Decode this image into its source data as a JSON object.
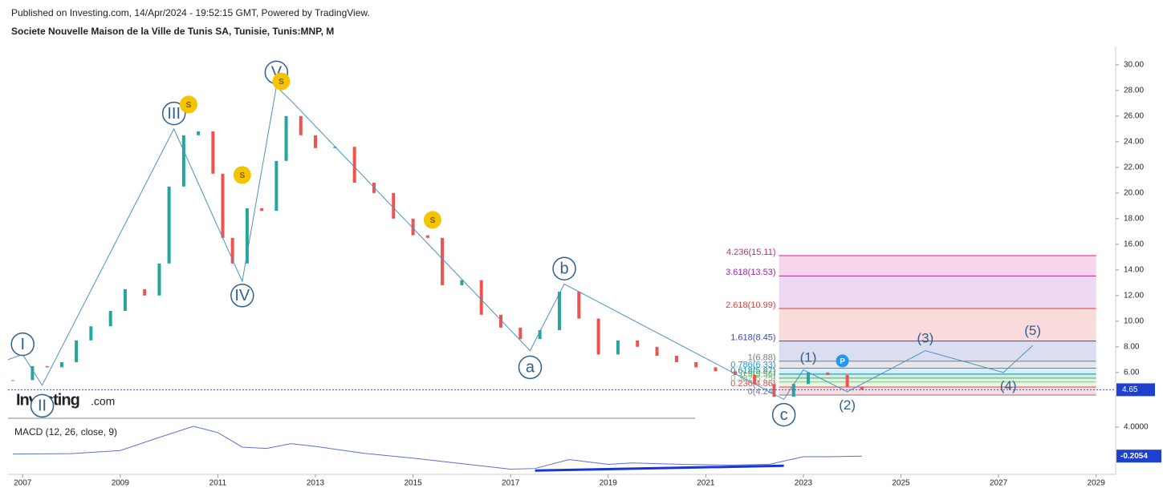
{
  "header": {
    "published": "Published on Investing.com, 14/Apr/2024 - 19:52:15 GMT, Powered by TradingView.",
    "symbol": "Societe Nouvelle Maison de la Ville de Tunis SA, Tunisie, Tunis:MNP, M",
    "logo": "Investing",
    "logo_suffix": ".com"
  },
  "chart_data": [
    {
      "type": "line",
      "name": "price",
      "x": [
        2006.8,
        2007.2,
        2007.5,
        2007.8,
        2008.1,
        2008.4,
        2008.8,
        2009.1,
        2009.5,
        2009.8,
        2010.0,
        2010.3,
        2010.6,
        2010.9,
        2011.1,
        2011.3,
        2011.6,
        2011.9,
        2012.2,
        2012.4,
        2012.7,
        2013.0,
        2013.4,
        2013.8,
        2014.2,
        2014.6,
        2015.0,
        2015.3,
        2015.6,
        2016.0,
        2016.4,
        2016.8,
        2017.2,
        2017.6,
        2018.0,
        2018.4,
        2018.8,
        2019.2,
        2019.6,
        2020.0,
        2020.4,
        2020.8,
        2021.2,
        2021.6,
        2022.0,
        2022.4,
        2022.8,
        2023.1,
        2023.5,
        2023.9,
        2024.2
      ],
      "values": [
        5.4,
        6.5,
        6.4,
        6.8,
        8.5,
        9.6,
        10.8,
        12.5,
        12.0,
        14.5,
        20.5,
        24.5,
        24.8,
        21.5,
        16.5,
        14.5,
        18.8,
        18.6,
        22.5,
        26.0,
        24.5,
        23.5,
        23.6,
        20.8,
        20.0,
        18.0,
        16.7,
        16.5,
        12.8,
        13.2,
        10.5,
        9.5,
        8.6,
        9.3,
        12.3,
        10.2,
        7.4,
        8.5,
        8.0,
        7.3,
        6.8,
        6.4,
        6.1,
        5.8,
        5.1,
        4.1,
        5.1,
        6.0,
        5.8,
        4.9,
        4.65
      ],
      "color": "#26a69a",
      "last_label": "4.65",
      "xlim": [
        2006.7,
        2029.4
      ],
      "xticks": [
        2007,
        2009,
        2011,
        2013,
        2015,
        2017,
        2019,
        2021,
        2023,
        2025,
        2027,
        2029
      ],
      "ylim": [
        2.3,
        31.3
      ],
      "yticks": [
        {
          "value": 6,
          "label": "6.00"
        },
        {
          "value": 8,
          "label": "8.00"
        },
        {
          "value": 10,
          "label": "10.00"
        },
        {
          "value": 12,
          "label": "12.00"
        },
        {
          "value": 14,
          "label": "14.00"
        },
        {
          "value": 16,
          "label": "16.00"
        },
        {
          "value": 18,
          "label": "18.00"
        },
        {
          "value": 20,
          "label": "20.00"
        },
        {
          "value": 22,
          "label": "22.00"
        },
        {
          "value": 24,
          "label": "24.00"
        },
        {
          "value": 26,
          "label": "26.00"
        },
        {
          "value": 28,
          "label": "28.00"
        },
        {
          "value": 30,
          "label": "30.00"
        }
      ],
      "wave_path": {
        "x": [
          2006.7,
          2007.0,
          2007.4,
          2010.1,
          2011.5,
          2012.2,
          2012.5,
          2017.4,
          2018.1,
          2022.6,
          2023.0,
          2023.9,
          2025.5,
          2027.1,
          2027.7
        ],
        "values": [
          7.0,
          7.4,
          5.0,
          25.0,
          13.1,
          28.3,
          27.2,
          7.7,
          12.9,
          3.9,
          6.2,
          4.5,
          7.7,
          6.0,
          8.1
        ],
        "color": "#4a90c4"
      },
      "waves": [
        {
          "label": "I",
          "x": 2007.0,
          "y": 8.2
        },
        {
          "label": "II",
          "x": 2007.4,
          "y": 3.4
        },
        {
          "label": "III",
          "x": 2010.1,
          "y": 26.2
        },
        {
          "label": "IV",
          "x": 2011.5,
          "y": 12.0
        },
        {
          "label": "V",
          "x": 2012.2,
          "y": 29.4
        },
        {
          "label": "a",
          "x": 2017.4,
          "y": 6.4
        },
        {
          "label": "b",
          "x": 2018.1,
          "y": 14.1
        },
        {
          "label": "c",
          "x": 2022.6,
          "y": 2.7
        }
      ],
      "projection": [
        {
          "label": "(1)",
          "x": 2023.1,
          "y": 7.1
        },
        {
          "label": "(2)",
          "x": 2023.9,
          "y": 3.4
        },
        {
          "label": "(3)",
          "x": 2025.5,
          "y": 8.6
        },
        {
          "label": "(4)",
          "x": 2027.2,
          "y": 4.9
        },
        {
          "label": "(5)",
          "x": 2027.7,
          "y": 9.2
        }
      ],
      "markers": [
        {
          "label": "S",
          "x": 2010.4,
          "y": 26.9
        },
        {
          "label": "S",
          "x": 2011.5,
          "y": 21.4
        },
        {
          "label": "S",
          "x": 2012.3,
          "y": 28.7
        },
        {
          "label": "S",
          "x": 2015.4,
          "y": 17.9
        },
        {
          "label": "P",
          "x": 2023.8,
          "y": 6.9
        }
      ],
      "fib_start": 2022.5,
      "fib_end": 2029.0,
      "fib_levels": [
        {
          "label": "4.236(15.11)",
          "value": 15.11,
          "color": "#d81b8c"
        },
        {
          "label": "3.618(13.53)",
          "value": 13.53,
          "color": "#9c27b0"
        },
        {
          "label": "2.618(10.99)",
          "value": 10.99,
          "color": "#e53935"
        },
        {
          "label": "1.618(8.45)",
          "value": 8.45,
          "color": "#3949ab"
        },
        {
          "label": "1(6.88)",
          "value": 6.88,
          "color": "#787b86"
        },
        {
          "label": "0.786(6.33)",
          "value": 6.33,
          "color": "#2196f3"
        },
        {
          "label": "0.618(5.87)",
          "value": 5.87,
          "color": "#009688"
        },
        {
          "label": "0.5(5.56)",
          "value": 5.56,
          "color": "#4caf50"
        },
        {
          "label": "0.382(5.25)",
          "value": 5.25,
          "color": "#81c784"
        },
        {
          "label": "0.236(4.86)",
          "value": 4.86,
          "color": "#f44336"
        },
        {
          "label": "0(4.24)",
          "value": 4.24,
          "color": "#787b86"
        }
      ]
    },
    {
      "type": "line",
      "name": "macd",
      "title": "MACD (12, 26, close, 9)",
      "x": [
        2006.8,
        2008.0,
        2009.0,
        2009.8,
        2010.5,
        2011.0,
        2011.5,
        2012.0,
        2012.5,
        2013.0,
        2014.0,
        2015.0,
        2016.0,
        2017.0,
        2017.5,
        2018.2,
        2019.0,
        2019.5,
        2020.5,
        2021.5,
        2022.3,
        2023.0,
        2023.5,
        2024.2
      ],
      "values": [
        0.1,
        0.15,
        0.6,
        2.5,
        4.1,
        3.2,
        1.1,
        0.9,
        1.6,
        1.2,
        0.2,
        -0.5,
        -1.3,
        -2.1,
        -2.0,
        -0.7,
        -1.4,
        -1.2,
        -1.4,
        -1.5,
        -1.4,
        -0.3,
        -0.3,
        -0.2054
      ],
      "color": "#5b6fd6",
      "last_label": "-0.2054",
      "ylim": [
        -2.5,
        5.5
      ],
      "yticks": [
        {
          "value": 4,
          "label": "4.0000"
        }
      ],
      "trend": {
        "x": [
          2017.5,
          2022.6
        ],
        "values": [
          -2.3,
          -1.6
        ],
        "color": "#1a35d6"
      }
    }
  ]
}
